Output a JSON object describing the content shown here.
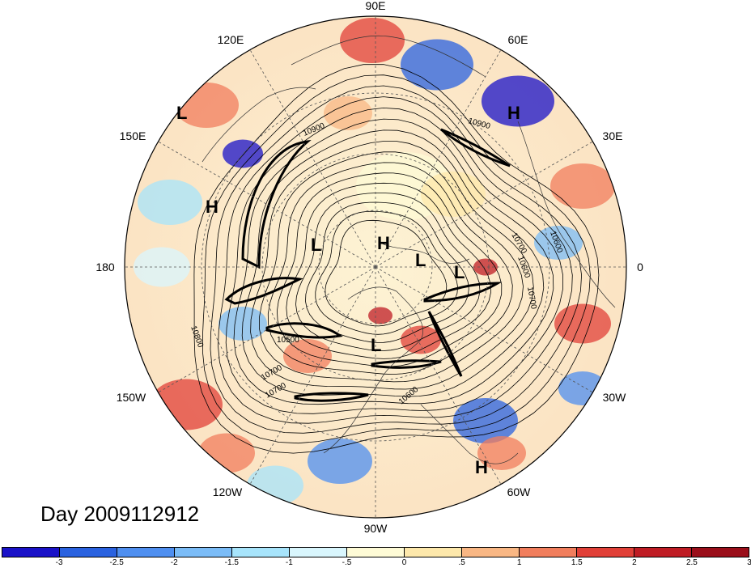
{
  "map": {
    "projection": "north-polar-stereographic",
    "longitude_labels": [
      "90E",
      "60E",
      "30E",
      "0",
      "30W",
      "60W",
      "90W",
      "120W",
      "150W",
      "180",
      "150E",
      "120E"
    ],
    "contour_labels": [
      "10900",
      "10800",
      "10700",
      "10600",
      "10500",
      "10900",
      "10700",
      "10700",
      "10600",
      "10700",
      "10600"
    ],
    "pressure_centers": [
      "L",
      "H",
      "H",
      "L",
      "H",
      "L",
      "L",
      "L",
      "H",
      "L"
    ],
    "date_label": "Day 2009112912"
  },
  "colorbar": {
    "colors": [
      "#1a12c8",
      "#2a62e0",
      "#4f8ff0",
      "#7bbcf7",
      "#a7e4fb",
      "#d9f6fd",
      "#fefbd6",
      "#fde8ab",
      "#f9b784",
      "#f17e5d",
      "#e14038",
      "#bf1c24",
      "#9a0e1a"
    ],
    "tick_labels": [
      "-3",
      "-2.5",
      "-2",
      "-1.5",
      "-1",
      "-.5",
      "0",
      ".5",
      "1",
      "1.5",
      "2",
      "2.5",
      "3"
    ]
  }
}
